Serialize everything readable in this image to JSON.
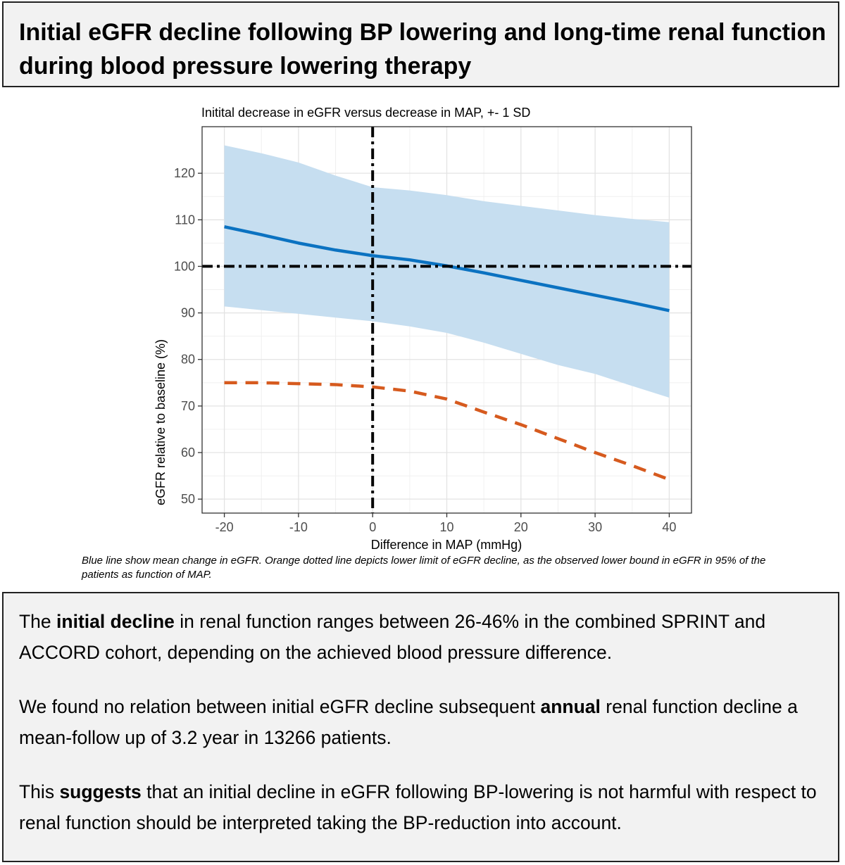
{
  "header": {
    "title": "Initial eGFR decline following BP lowering and long-time renal function during blood pressure lowering therapy"
  },
  "chart_data": {
    "type": "line",
    "title": "Initital decrease in eGFR versus decrease in MAP, +- 1 SD",
    "xlabel": "Difference in MAP (mmHg)",
    "ylabel": "eGFR relative to baseline (%)",
    "xlim": [
      -23,
      43
    ],
    "ylim": [
      47,
      130
    ],
    "xticks": [
      -20,
      -10,
      0,
      10,
      20,
      30,
      40
    ],
    "yticks": [
      50,
      60,
      70,
      80,
      90,
      100,
      110,
      120
    ],
    "grid": true,
    "reference_lines": {
      "vertical_x": 0,
      "horizontal_y": 100,
      "style": "dash-dot"
    },
    "series": [
      {
        "style": "solid",
        "color": "#0b72c1",
        "x": [
          -20,
          -15,
          -10,
          -5,
          0,
          5,
          10,
          15,
          20,
          25,
          30,
          35,
          40
        ],
        "y": [
          108.5,
          106.8,
          105,
          103.5,
          102.3,
          101.4,
          100.1,
          98.6,
          97,
          95.4,
          93.8,
          92.2,
          90.5
        ],
        "band_upper": [
          126,
          124.3,
          122.3,
          119.5,
          117,
          116.3,
          115.3,
          114,
          113,
          112,
          111,
          110.2,
          109.5
        ],
        "band_lower": [
          91.4,
          90.6,
          89.8,
          89,
          88.2,
          87.1,
          85.7,
          83.6,
          81.2,
          78.8,
          76.9,
          74.3,
          71.8
        ],
        "band_color": "#c6def0"
      },
      {
        "style": "dashed",
        "color": "#d65a1e",
        "x": [
          -20,
          -15,
          -10,
          -5,
          0,
          5,
          10,
          15,
          20,
          25,
          30,
          35,
          40
        ],
        "y": [
          75,
          75,
          74.8,
          74.6,
          74.1,
          73.2,
          71.5,
          68.7,
          66,
          63,
          60,
          57.2,
          54.2
        ]
      }
    ]
  },
  "caption": "Blue line show mean change in eGFR. Orange dotted line depicts lower limit of eGFR decline, as the observed lower bound in eGFR in 95% of the patients as function of MAP.",
  "summary": {
    "p1_a": "The ",
    "p1_b": "initial decline",
    "p1_c": " in renal function ranges between 26-46% in the combined SPRINT and ACCORD cohort, depending on the achieved blood pressure difference.",
    "p2_a": "We found no relation between initial eGFR decline subsequent ",
    "p2_b": "annual",
    "p2_c": " renal function decline a mean-follow up of 3.2 year in 13266 patients.",
    "p3_a": "This ",
    "p3_b": "suggests",
    "p3_c": " that an initial decline in eGFR following BP-lowering is not harmful with respect to renal function should be interpreted taking the BP-reduction into account."
  }
}
